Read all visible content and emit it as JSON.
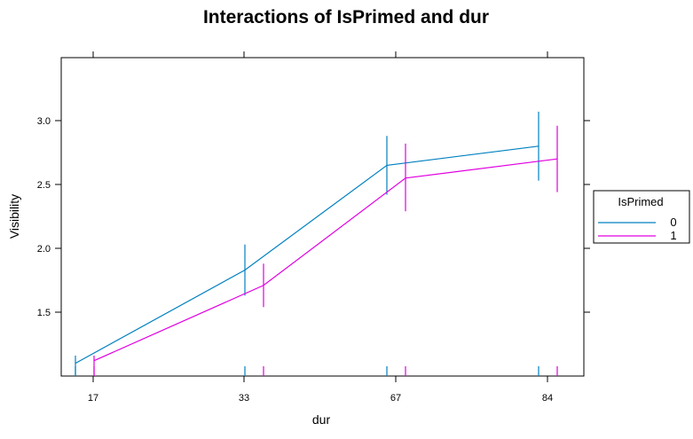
{
  "chart_data": {
    "type": "line",
    "title": "Interactions of IsPrimed and dur",
    "xlabel": "dur",
    "ylabel": "Visibility",
    "categories": [
      "17",
      "33",
      "67",
      "84"
    ],
    "yticks": [
      "1.5",
      "2.0",
      "2.5",
      "3.0"
    ],
    "ylim": [
      1.0,
      3.5
    ],
    "grid": false,
    "legend": {
      "title": "IsPrimed",
      "placement": "right"
    },
    "series": [
      {
        "name": "0",
        "color": "#0080c0",
        "values": [
          1.1,
          1.83,
          2.65,
          2.8
        ],
        "lower": [
          1.0,
          1.63,
          2.42,
          2.53
        ],
        "upper": [
          1.16,
          2.03,
          2.88,
          3.07
        ]
      },
      {
        "name": "1",
        "color": "#e000e0",
        "values": [
          1.12,
          1.71,
          2.55,
          2.7
        ],
        "lower": [
          1.0,
          1.54,
          2.29,
          2.44
        ],
        "upper": [
          1.16,
          1.88,
          2.82,
          2.96
        ]
      }
    ]
  }
}
